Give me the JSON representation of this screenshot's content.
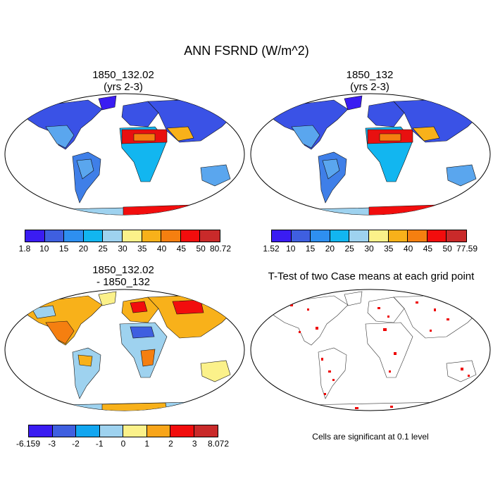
{
  "figure": {
    "title": "ANN FSRND (W/m^2)"
  },
  "panels": [
    {
      "id": "case1",
      "title_line1": "1850_132.02",
      "title_line2": "(yrs 2-3)",
      "colorbar": {
        "labels": [
          "1.8",
          "10",
          "15",
          "20",
          "25",
          "30",
          "35",
          "40",
          "45",
          "50",
          "80.72"
        ],
        "colors": [
          "#3a1cf2",
          "#3f5fe0",
          "#2e8ff0",
          "#12b6f0",
          "#9ed2ef",
          "#fbf18a",
          "#f8b11a",
          "#f57f10",
          "#f20d0d",
          "#c92a2a"
        ]
      }
    },
    {
      "id": "case2",
      "title_line1": "1850_132",
      "title_line2": "(yrs 2-3)",
      "colorbar": {
        "labels": [
          "1.52",
          "10",
          "15",
          "20",
          "25",
          "30",
          "35",
          "40",
          "45",
          "50",
          "77.59"
        ],
        "colors": [
          "#3a1cf2",
          "#3f5fe0",
          "#2e8ff0",
          "#12b6f0",
          "#9ed2ef",
          "#fbf18a",
          "#f8b11a",
          "#f57f10",
          "#f20d0d",
          "#c92a2a"
        ]
      }
    },
    {
      "id": "diff",
      "title_line1": "1850_132.02",
      "title_line2": "- 1850_132",
      "colorbar": {
        "labels": [
          "-6.159",
          "-3",
          "-2",
          "-1",
          "0",
          "1",
          "2",
          "3",
          "8.072"
        ],
        "colors": [
          "#3a1cf2",
          "#3f5fe0",
          "#12a6f0",
          "#9ed2ef",
          "#fbf18a",
          "#f8a51a",
          "#f20d0d",
          "#c92a2a"
        ]
      }
    },
    {
      "id": "ttest",
      "title_line1": "T-Test of two Case means at each grid point",
      "note": "Cells are significant at 0.1 level",
      "significance_color": "#ee0000"
    }
  ]
}
